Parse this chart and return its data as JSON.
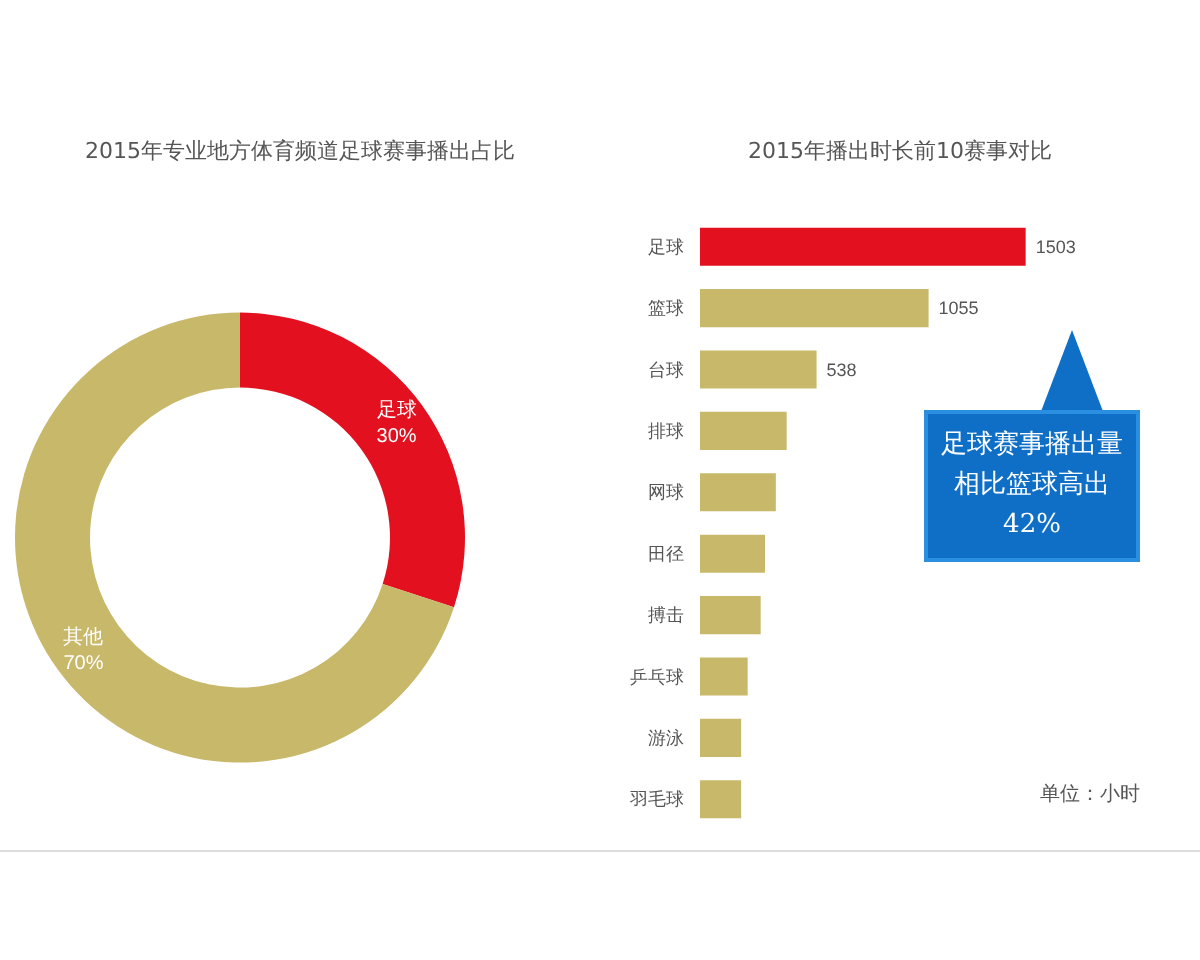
{
  "chart_data": [
    {
      "type": "donut",
      "title": "2015年专业地方体育频道足球赛事播出占比",
      "categories": [
        "足球",
        "其他"
      ],
      "values": [
        30,
        70
      ],
      "colors": [
        "#e3101f",
        "#c8b86a"
      ],
      "value_labels": [
        "30%",
        "70%"
      ],
      "legend": false
    },
    {
      "type": "bar",
      "orientation": "horizontal",
      "title": "2015年播出时长前10赛事对比",
      "categories": [
        "足球",
        "篮球",
        "台球",
        "排球",
        "网球",
        "田径",
        "搏击",
        "乒乓球",
        "游泳",
        "羽毛球"
      ],
      "values": [
        1503,
        1055,
        538,
        400,
        350,
        300,
        280,
        220,
        190,
        190
      ],
      "colors": [
        "#e3101f",
        "#c8b86a",
        "#c8b86a",
        "#c8b86a",
        "#c8b86a",
        "#c8b86a",
        "#c8b86a",
        "#c8b86a",
        "#c8b86a",
        "#c8b86a"
      ],
      "value_labels": [
        "1503",
        "1055",
        "538",
        null,
        null,
        null,
        null,
        null,
        null,
        null
      ],
      "legend": false,
      "annotations": [
        "足球赛事播出量相比篮球高出42%",
        "单位：小时"
      ]
    }
  ]
}
